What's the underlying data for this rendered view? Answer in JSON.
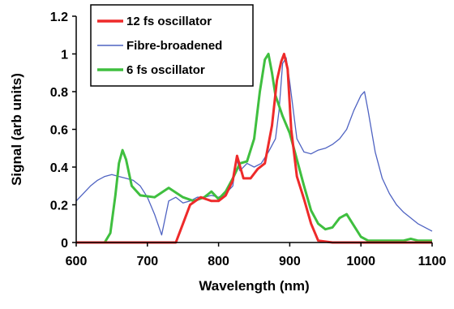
{
  "chart_data": {
    "type": "line",
    "xlabel": "Wavelength (nm)",
    "ylabel": "Signal (arb units)",
    "xlim": [
      600,
      1100
    ],
    "ylim": [
      0,
      1.2
    ],
    "x_ticks": [
      "600",
      "700",
      "800",
      "900",
      "1000",
      "1100"
    ],
    "y_ticks": [
      "0",
      "0.2",
      "0.4",
      "0.6",
      "0.8",
      "1",
      "1.2"
    ],
    "grid": false,
    "legend": "top-left",
    "series": [
      {
        "name": "12 fs oscillator",
        "color": "#ee2a2a",
        "x": [
          600,
          700,
          740,
          750,
          760,
          775,
          790,
          800,
          810,
          820,
          826,
          835,
          845,
          855,
          865,
          875,
          882,
          888,
          892,
          897,
          902,
          910,
          920,
          930,
          940,
          960,
          1100
        ],
        "y": [
          0,
          0,
          0,
          0.1,
          0.2,
          0.24,
          0.22,
          0.22,
          0.25,
          0.33,
          0.46,
          0.34,
          0.34,
          0.39,
          0.42,
          0.62,
          0.86,
          0.96,
          1.0,
          0.92,
          0.6,
          0.35,
          0.23,
          0.1,
          0.01,
          0,
          0
        ]
      },
      {
        "name": "Fibre-broadened",
        "color": "#4f63c2",
        "x": [
          600,
          610,
          620,
          630,
          640,
          650,
          660,
          670,
          680,
          690,
          700,
          710,
          720,
          730,
          740,
          750,
          760,
          770,
          780,
          790,
          800,
          810,
          820,
          825,
          830,
          840,
          850,
          860,
          870,
          880,
          885,
          890,
          895,
          900,
          910,
          920,
          930,
          940,
          950,
          960,
          970,
          980,
          990,
          1000,
          1005,
          1010,
          1020,
          1030,
          1040,
          1050,
          1060,
          1070,
          1080,
          1090,
          1100
        ],
        "y": [
          0.22,
          0.26,
          0.3,
          0.33,
          0.35,
          0.36,
          0.35,
          0.34,
          0.33,
          0.3,
          0.24,
          0.15,
          0.04,
          0.22,
          0.24,
          0.21,
          0.22,
          0.24,
          0.24,
          0.25,
          0.24,
          0.26,
          0.3,
          0.45,
          0.38,
          0.42,
          0.4,
          0.42,
          0.48,
          0.55,
          0.7,
          0.95,
          0.98,
          0.85,
          0.55,
          0.48,
          0.47,
          0.49,
          0.5,
          0.52,
          0.55,
          0.6,
          0.7,
          0.78,
          0.8,
          0.7,
          0.48,
          0.34,
          0.26,
          0.2,
          0.16,
          0.13,
          0.1,
          0.08,
          0.06
        ]
      },
      {
        "name": "6 fs oscillator",
        "color": "#3fbf3f",
        "x": [
          600,
          640,
          648,
          655,
          660,
          665,
          670,
          678,
          690,
          710,
          730,
          750,
          765,
          780,
          790,
          800,
          810,
          820,
          830,
          840,
          850,
          858,
          865,
          870,
          875,
          880,
          890,
          900,
          910,
          920,
          930,
          940,
          950,
          960,
          970,
          980,
          990,
          1000,
          1010,
          1020,
          1060,
          1070,
          1080,
          1100
        ],
        "y": [
          0,
          0,
          0.05,
          0.25,
          0.42,
          0.49,
          0.44,
          0.3,
          0.25,
          0.24,
          0.29,
          0.24,
          0.22,
          0.24,
          0.27,
          0.23,
          0.27,
          0.34,
          0.42,
          0.43,
          0.55,
          0.8,
          0.97,
          1.0,
          0.9,
          0.78,
          0.67,
          0.58,
          0.44,
          0.3,
          0.17,
          0.1,
          0.07,
          0.08,
          0.13,
          0.15,
          0.09,
          0.03,
          0.01,
          0.01,
          0.01,
          0.02,
          0.01,
          0.01
        ]
      }
    ]
  }
}
